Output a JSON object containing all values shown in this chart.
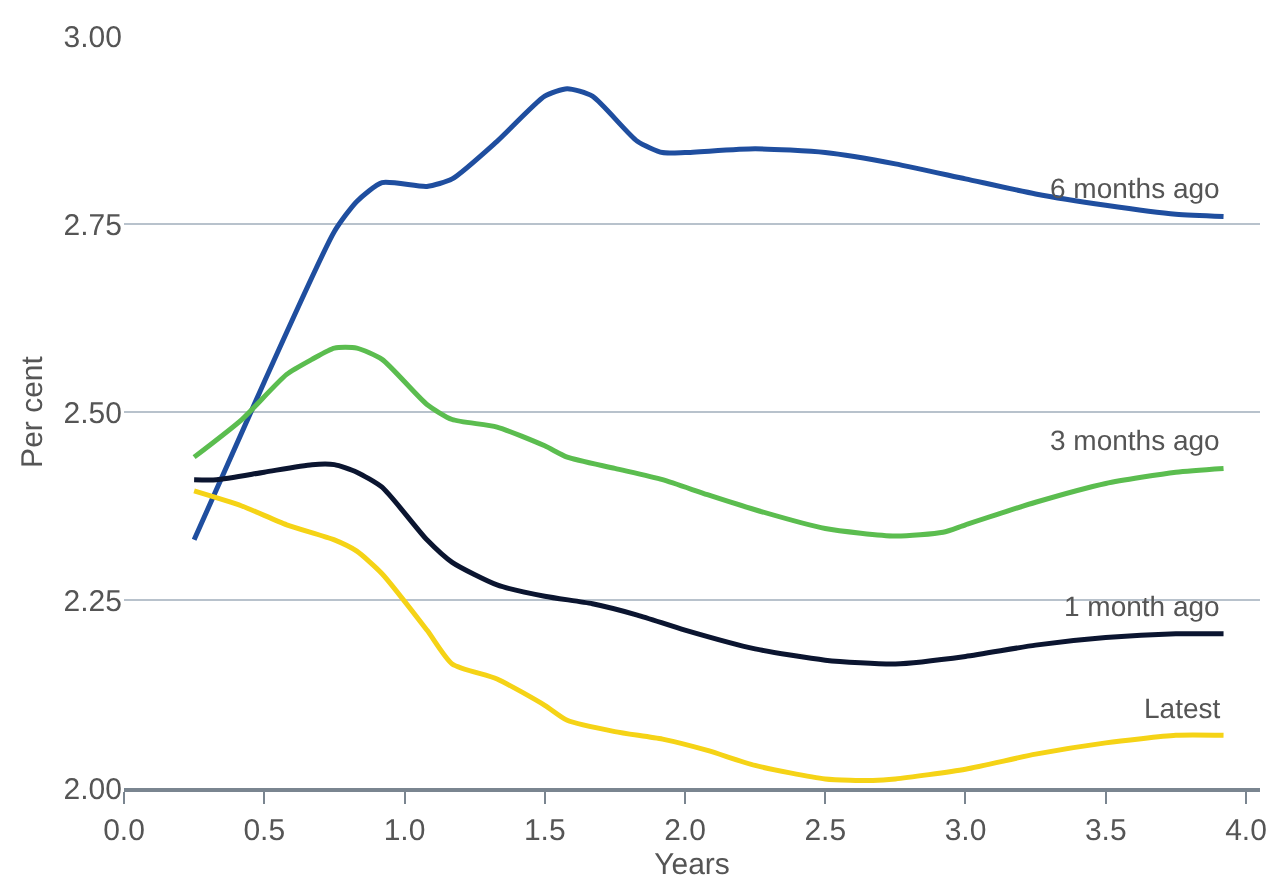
{
  "chart_data": {
    "type": "line",
    "xlabel": "Years",
    "ylabel": "Per cent",
    "xlim": [
      0,
      4.05
    ],
    "ylim": [
      2,
      3
    ],
    "xticks": [
      {
        "value": 0,
        "label": "0.0"
      },
      {
        "value": 0.5,
        "label": "0.5"
      },
      {
        "value": 1,
        "label": "1.0"
      },
      {
        "value": 1.5,
        "label": "1.5"
      },
      {
        "value": 2,
        "label": "2.0"
      },
      {
        "value": 2.5,
        "label": "2.5"
      },
      {
        "value": 3,
        "label": "3.0"
      },
      {
        "value": 3.5,
        "label": "3.5"
      },
      {
        "value": 4,
        "label": "4.0"
      }
    ],
    "yticks": [
      {
        "value": 2,
        "label": "2.00"
      },
      {
        "value": 2.25,
        "label": "2.25"
      },
      {
        "value": 2.5,
        "label": "2.50"
      },
      {
        "value": 2.75,
        "label": "2.75"
      },
      {
        "value": 3,
        "label": "3.00"
      }
    ],
    "grid": "y",
    "legend": false,
    "marker": "none",
    "line_style": "solid",
    "series": [
      {
        "name": "6 months ago",
        "color": "#1f4e9f",
        "x": [
          0.25,
          0.5,
          0.75,
          0.83,
          0.92,
          1.08,
          1.17,
          1.33,
          1.5,
          1.58,
          1.67,
          1.83,
          1.92,
          2.0,
          2.25,
          2.5,
          2.75,
          3.0,
          3.25,
          3.5,
          3.75,
          3.92
        ],
        "values": [
          2.33,
          2.54,
          2.74,
          2.78,
          2.805,
          2.8,
          2.81,
          2.86,
          2.92,
          2.93,
          2.92,
          2.86,
          2.845,
          2.845,
          2.85,
          2.845,
          2.83,
          2.81,
          2.79,
          2.775,
          2.763,
          2.76
        ]
      },
      {
        "name": "3 months ago",
        "color": "#5bbd4f",
        "x": [
          0.25,
          0.42,
          0.58,
          0.67,
          0.75,
          0.83,
          0.92,
          1.08,
          1.17,
          1.33,
          1.5,
          1.58,
          1.75,
          1.92,
          2.08,
          2.25,
          2.5,
          2.75,
          2.92,
          3.0,
          3.25,
          3.5,
          3.75,
          3.92
        ],
        "values": [
          2.44,
          2.49,
          2.55,
          2.57,
          2.585,
          2.585,
          2.57,
          2.51,
          2.49,
          2.48,
          2.455,
          2.44,
          2.425,
          2.41,
          2.39,
          2.37,
          2.345,
          2.335,
          2.34,
          2.35,
          2.38,
          2.405,
          2.42,
          2.425
        ]
      },
      {
        "name": "1 month ago",
        "color": "#0b1530",
        "x": [
          0.25,
          0.33,
          0.5,
          0.67,
          0.75,
          0.83,
          0.92,
          1.08,
          1.17,
          1.33,
          1.5,
          1.67,
          1.83,
          2.0,
          2.25,
          2.5,
          2.75,
          3.0,
          3.25,
          3.5,
          3.75,
          3.92
        ],
        "values": [
          2.41,
          2.41,
          2.42,
          2.43,
          2.43,
          2.42,
          2.4,
          2.33,
          2.3,
          2.27,
          2.255,
          2.245,
          2.23,
          2.21,
          2.185,
          2.17,
          2.165,
          2.175,
          2.19,
          2.2,
          2.205,
          2.205
        ]
      },
      {
        "name": "Latest",
        "color": "#f5d316",
        "x": [
          0.25,
          0.42,
          0.58,
          0.75,
          0.83,
          0.92,
          1.08,
          1.17,
          1.33,
          1.5,
          1.58,
          1.75,
          1.92,
          2.08,
          2.25,
          2.5,
          2.67,
          2.75,
          3.0,
          3.25,
          3.5,
          3.75,
          3.92
        ],
        "values": [
          2.395,
          2.375,
          2.35,
          2.33,
          2.315,
          2.285,
          2.21,
          2.165,
          2.145,
          2.11,
          2.09,
          2.075,
          2.065,
          2.05,
          2.03,
          2.012,
          2.01,
          2.012,
          2.025,
          2.045,
          2.06,
          2.07,
          2.07
        ]
      }
    ]
  }
}
